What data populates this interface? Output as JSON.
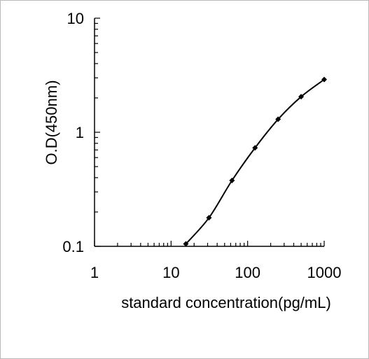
{
  "chart_data": {
    "type": "line",
    "title": "",
    "xlabel": "standard concentration(pg/mL)",
    "ylabel": "O.D(450nm)",
    "x_scale": "log",
    "y_scale": "log",
    "xlim": [
      1,
      1000
    ],
    "ylim": [
      0.1,
      10
    ],
    "x_tick_labels": [
      "1",
      "10",
      "100",
      "1000"
    ],
    "y_tick_labels": [
      "0.1",
      "1",
      "10"
    ],
    "grid": false,
    "legend": "none",
    "series": [
      {
        "x": [
          15.6,
          31.25,
          62.5,
          125,
          250,
          500,
          1000
        ],
        "y": [
          0.105,
          0.178,
          0.378,
          0.73,
          1.3,
          2.05,
          2.9
        ],
        "color": "#000000",
        "marker": "diamond"
      }
    ]
  }
}
